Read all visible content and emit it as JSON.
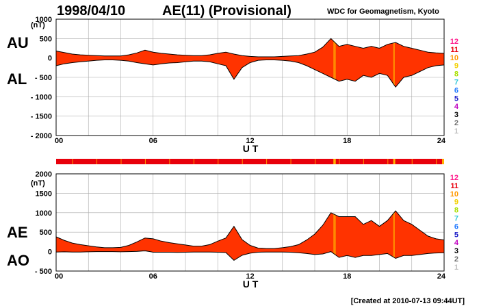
{
  "header": {
    "date": "1998/04/10",
    "title": "AE(11) (Provisional)",
    "source": "WDC for Geomagnetism, Kyoto"
  },
  "footer": {
    "created": "[Created at 2010-07-13 09:44UT]"
  },
  "station_count_legend": {
    "labels": [
      "12",
      "11",
      "10",
      "9",
      "8",
      "7",
      "6",
      "5",
      "4",
      "3",
      "2",
      "1"
    ],
    "colors": [
      "#ff1a8c",
      "#e8000b",
      "#ff9900",
      "#f4d000",
      "#a8e000",
      "#33c8d8",
      "#1e78ff",
      "#2020c8",
      "#c000c0",
      "#000000",
      "#6e6e6e",
      "#bdbdbd"
    ]
  },
  "colors": {
    "fill": "#ff3300",
    "fill_low_station": "#ff9900",
    "fill_mid": "#ffb000",
    "fill_high": "#e8000b"
  },
  "chart_data": [
    {
      "type": "area",
      "panel": "AU/AL",
      "labels_left": [
        "AU",
        "AL"
      ],
      "unit": "(nT)",
      "xlabel": "U T",
      "x_ticks": [
        "00",
        "06",
        "12",
        "18",
        "24"
      ],
      "xlim": [
        0,
        24
      ],
      "ylim": [
        -2000,
        1000
      ],
      "y_ticks": [
        "1000",
        "500",
        "0",
        "- 500",
        "- 1000",
        "- 1500",
        "- 2000"
      ],
      "y_tick_values": [
        1000,
        500,
        0,
        -500,
        -1000,
        -1500,
        -2000
      ],
      "grid": true,
      "x": [
        0,
        0.5,
        1,
        1.5,
        2,
        2.5,
        3,
        3.5,
        4,
        4.5,
        5,
        5.5,
        6,
        6.5,
        7,
        7.5,
        8,
        8.5,
        9,
        9.5,
        10,
        10.5,
        11,
        11.5,
        12,
        12.5,
        13,
        13.5,
        14,
        14.5,
        15,
        15.5,
        16,
        16.5,
        17,
        17.5,
        18,
        18.5,
        19,
        19.5,
        20,
        20.5,
        21,
        21.5,
        22,
        22.5,
        23,
        23.5,
        24
      ],
      "series": [
        {
          "name": "AU",
          "values": [
            180,
            140,
            100,
            80,
            70,
            60,
            50,
            50,
            50,
            80,
            130,
            200,
            150,
            120,
            100,
            80,
            70,
            60,
            60,
            80,
            120,
            150,
            100,
            60,
            40,
            30,
            30,
            30,
            40,
            50,
            60,
            100,
            150,
            280,
            500,
            300,
            350,
            300,
            250,
            300,
            250,
            350,
            400,
            300,
            250,
            200,
            150,
            130,
            120
          ]
        },
        {
          "name": "AL",
          "values": [
            -200,
            -150,
            -120,
            -100,
            -80,
            -60,
            -50,
            -50,
            -60,
            -80,
            -120,
            -150,
            -180,
            -150,
            -130,
            -120,
            -100,
            -80,
            -80,
            -100,
            -150,
            -200,
            -550,
            -250,
            -120,
            -60,
            -50,
            -50,
            -60,
            -80,
            -120,
            -200,
            -300,
            -400,
            -500,
            -600,
            -550,
            -600,
            -450,
            -500,
            -400,
            -450,
            -750,
            -500,
            -450,
            -350,
            -250,
            -200,
            -180
          ]
        }
      ],
      "low_station_bands": [
        [
          17.15,
          17.3
        ],
        [
          20.85,
          20.95
        ]
      ]
    },
    {
      "type": "area",
      "panel": "AE/AO",
      "labels_left": [
        "AE",
        "AO"
      ],
      "unit": "(nT)",
      "xlabel": "U T",
      "x_ticks": [
        "00",
        "06",
        "12",
        "18",
        "24"
      ],
      "xlim": [
        0,
        24
      ],
      "ylim": [
        -500,
        2000
      ],
      "y_ticks": [
        "2000",
        "1500",
        "1000",
        "500",
        "0",
        "- 500"
      ],
      "y_tick_values": [
        2000,
        1500,
        1000,
        500,
        0,
        -500
      ],
      "grid": true,
      "x": [
        0,
        0.5,
        1,
        1.5,
        2,
        2.5,
        3,
        3.5,
        4,
        4.5,
        5,
        5.5,
        6,
        6.5,
        7,
        7.5,
        8,
        8.5,
        9,
        9.5,
        10,
        10.5,
        11,
        11.5,
        12,
        12.5,
        13,
        13.5,
        14,
        14.5,
        15,
        15.5,
        16,
        16.5,
        17,
        17.5,
        18,
        18.5,
        19,
        19.5,
        20,
        20.5,
        21,
        21.5,
        22,
        22.5,
        23,
        23.5,
        24
      ],
      "series": [
        {
          "name": "AE",
          "values": [
            380,
            290,
            220,
            180,
            150,
            120,
            100,
            100,
            110,
            160,
            250,
            350,
            330,
            270,
            230,
            200,
            170,
            140,
            140,
            180,
            270,
            350,
            650,
            310,
            160,
            90,
            80,
            80,
            100,
            130,
            180,
            300,
            450,
            680,
            1000,
            900,
            900,
            900,
            700,
            800,
            650,
            800,
            1050,
            800,
            700,
            550,
            400,
            330,
            300
          ]
        },
        {
          "name": "AO",
          "values": [
            -10,
            -5,
            -10,
            -10,
            -5,
            0,
            0,
            0,
            -5,
            0,
            5,
            25,
            -15,
            -15,
            -15,
            -20,
            -15,
            -10,
            -10,
            -10,
            -15,
            -25,
            -225,
            -95,
            -40,
            -15,
            -10,
            -10,
            -10,
            -15,
            -30,
            -50,
            -75,
            -60,
            0,
            -150,
            -100,
            -150,
            -100,
            -100,
            -75,
            -50,
            -175,
            -100,
            -100,
            -75,
            -50,
            -35,
            -30
          ]
        }
      ],
      "low_station_bands": [
        [
          17.15,
          17.3
        ],
        [
          20.85,
          20.95
        ]
      ]
    }
  ]
}
